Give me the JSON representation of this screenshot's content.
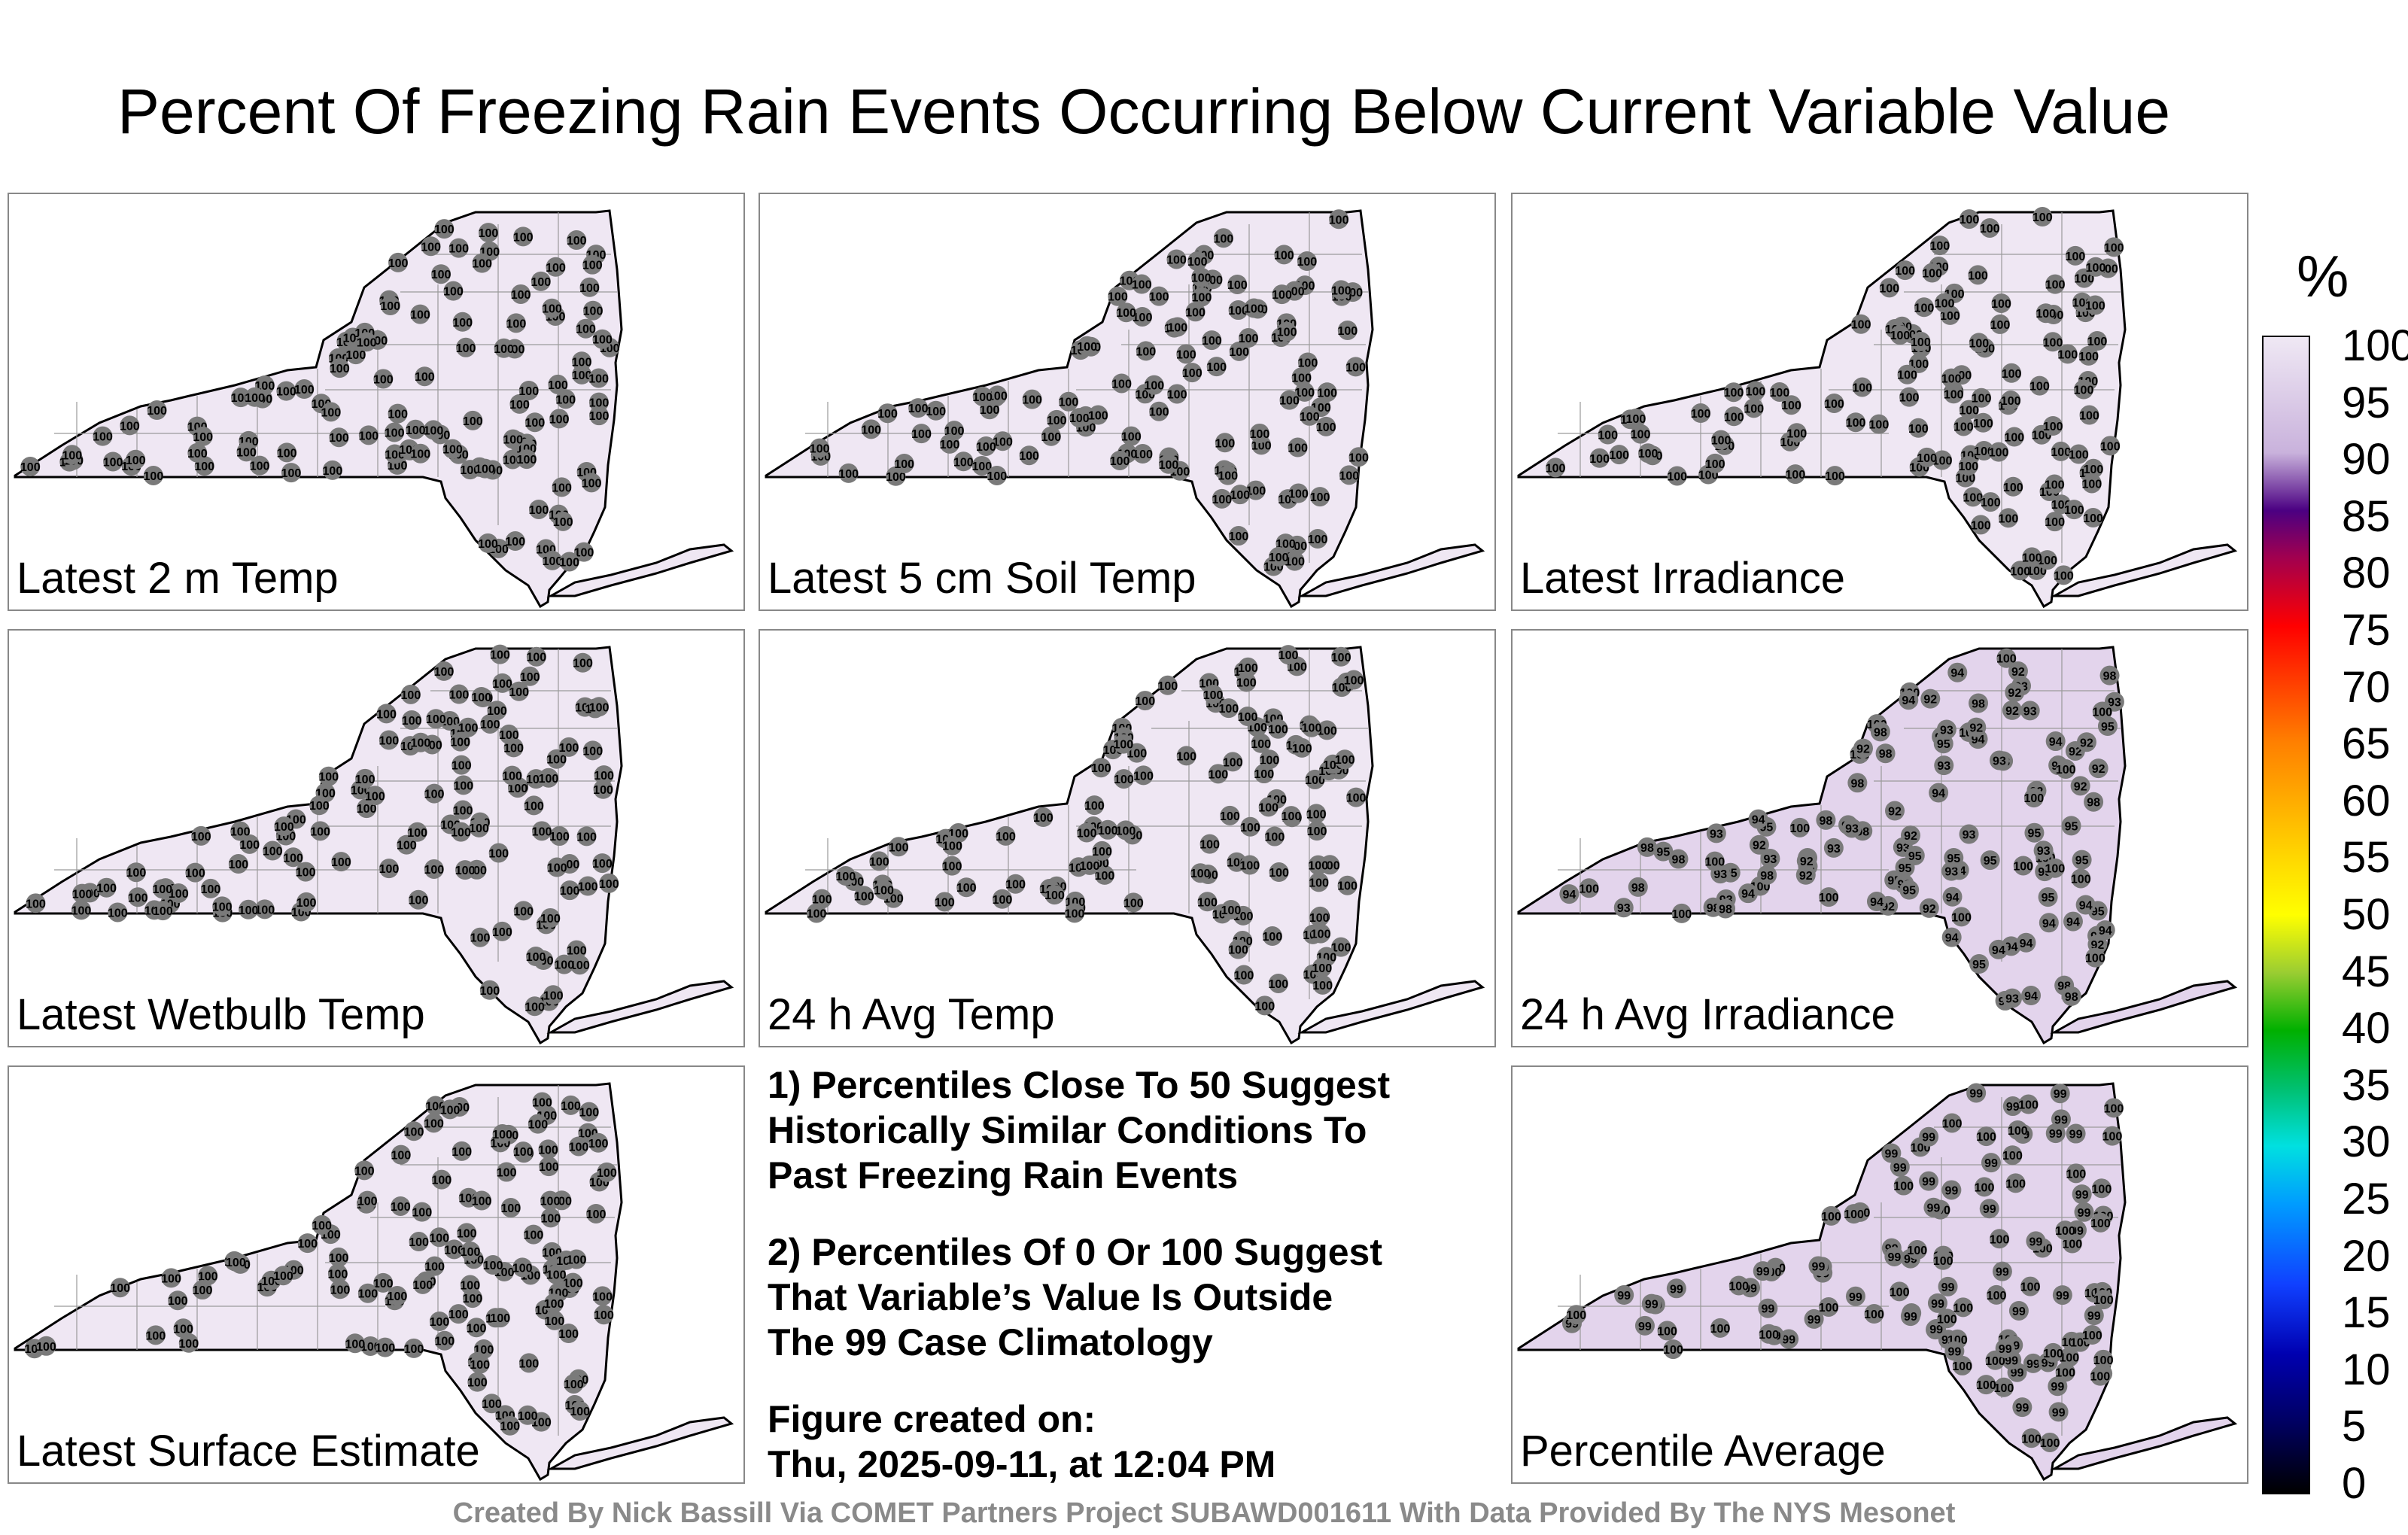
{
  "title": "Percent Of Freezing Rain Events Occurring Below Current Variable Value",
  "panels": [
    {
      "label": "Latest 2 m Temp",
      "values": [
        "100"
      ],
      "shade": "#efe7f3"
    },
    {
      "label": "Latest 5 cm Soil Temp",
      "values": [
        "100"
      ],
      "shade": "#efe7f3"
    },
    {
      "label": "Latest Irradiance",
      "values": [
        "100"
      ],
      "shade": "#efe7f3"
    },
    {
      "label": "Latest Wetbulb Temp",
      "values": [
        "100"
      ],
      "shade": "#efe7f3"
    },
    {
      "label": "24 h Avg Temp",
      "values": [
        "100"
      ],
      "shade": "#efe7f3"
    },
    {
      "label": "24 h Avg Irradiance",
      "values": [
        "100",
        "98",
        "95",
        "94",
        "93",
        "92"
      ],
      "shade": "#e3d4ec"
    },
    {
      "label": "Latest Surface Estimate",
      "values": [
        "100"
      ],
      "shade": "#efe7f3"
    },
    {
      "label": "Percentile Average",
      "values": [
        "100",
        "99"
      ],
      "shade": "#e3d4ec"
    }
  ],
  "notes": {
    "note1": [
      "1) Percentiles Close To 50 Suggest",
      "Historically Similar Conditions To",
      "Past Freezing Rain Events"
    ],
    "note2": [
      "2) Percentiles Of 0 Or 100 Suggest",
      "That Variable’s Value Is Outside",
      "The 99 Case Climatology"
    ],
    "created_label": "Figure created on:",
    "created_value": "Thu, 2025-09-11, at 12:04 PM"
  },
  "colorbar": {
    "unit": "%",
    "ticks": [
      "100",
      "95",
      "90",
      "85",
      "80",
      "75",
      "70",
      "65",
      "60",
      "55",
      "50",
      "45",
      "40",
      "35",
      "30",
      "25",
      "20",
      "15",
      "10",
      "5",
      "0"
    ]
  },
  "footer": "Created By Nick Bassill Via COMET Partners Project SUBAWD001611 With Data Provided By The NYS Mesonet"
}
